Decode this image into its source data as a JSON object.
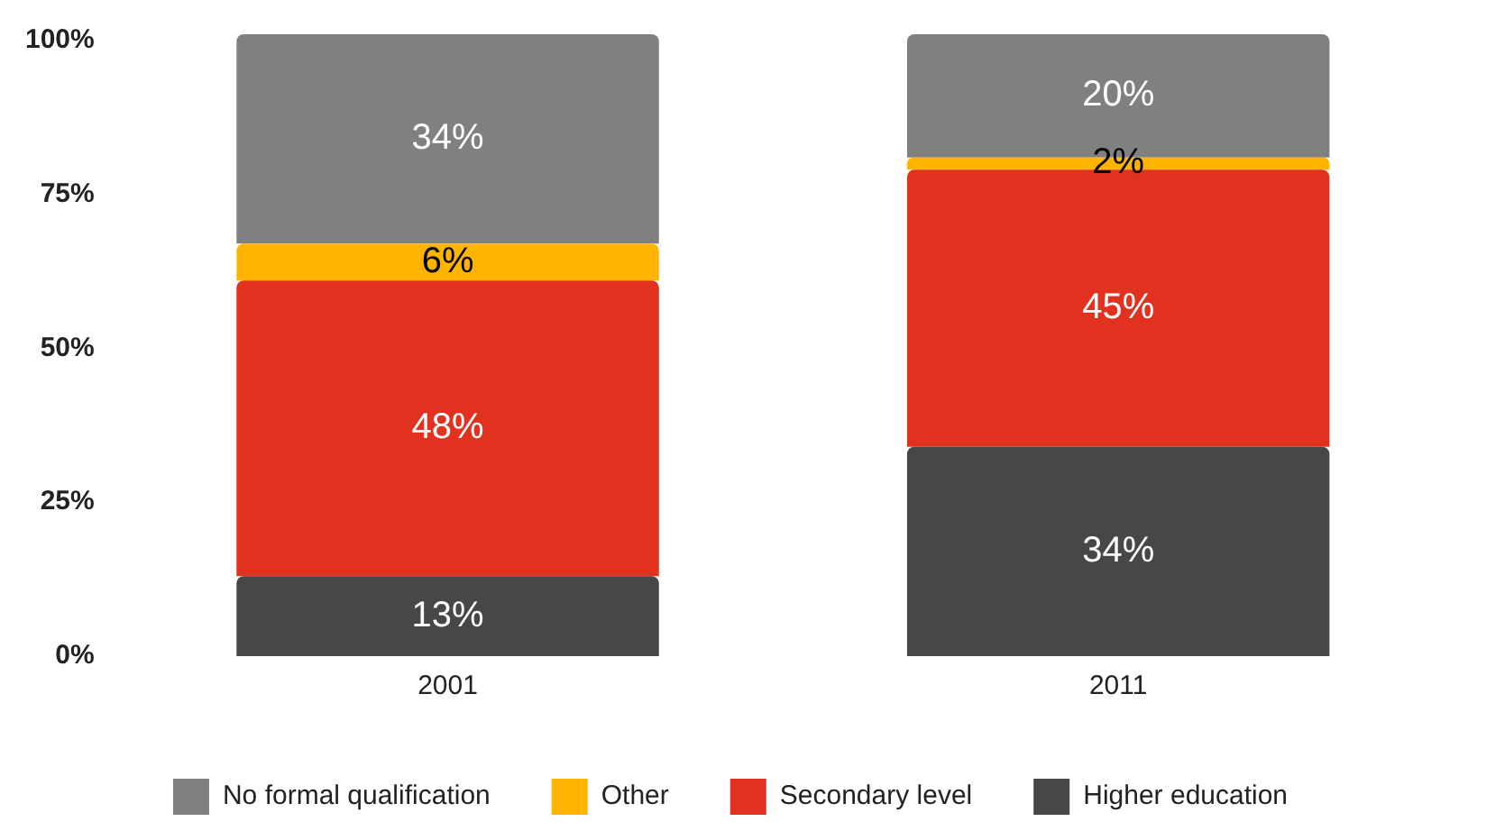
{
  "chart_data": {
    "type": "bar",
    "stacked": true,
    "categories": [
      "2001",
      "2011"
    ],
    "series": [
      {
        "name": "Higher education",
        "color": "#474747",
        "values": [
          13,
          34
        ]
      },
      {
        "name": "Secondary level",
        "color": "#e0321f",
        "values": [
          48,
          45
        ]
      },
      {
        "name": "Other",
        "color": "#ffb400",
        "values": [
          6,
          2
        ]
      },
      {
        "name": "No formal qualification",
        "color": "#808080",
        "values": [
          34,
          20
        ]
      }
    ],
    "ylim": [
      0,
      101
    ],
    "yticks": [
      {
        "value": 0,
        "label": "0%"
      },
      {
        "value": 25,
        "label": "25%"
      },
      {
        "value": 50,
        "label": "50%"
      },
      {
        "value": 75,
        "label": "75%"
      },
      {
        "value": 100,
        "label": "100%"
      }
    ],
    "value_labels": [
      [
        "13%",
        "34%"
      ],
      [
        "48%",
        "45%"
      ],
      [
        "6%",
        "2%"
      ],
      [
        "34%",
        "20%"
      ]
    ],
    "grid": false,
    "legend": "bottom"
  }
}
